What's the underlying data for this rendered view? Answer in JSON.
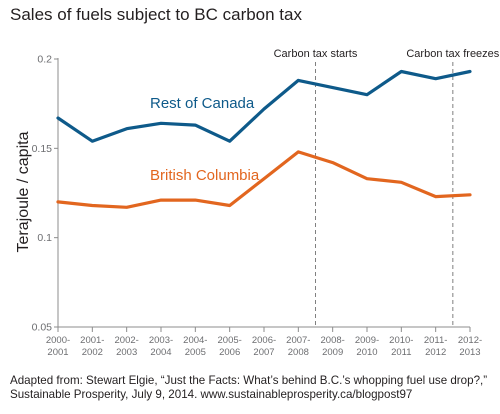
{
  "chart_data": {
    "type": "line",
    "title": "Sales of fuels subject to BC carbon tax",
    "ylabel": "Terajoule / capita",
    "xlabel": "",
    "ylim": [
      0.05,
      0.2
    ],
    "yticks": [
      "0.2",
      "0.15",
      "0.1",
      "0.05"
    ],
    "categories": [
      [
        "2000-",
        "2001"
      ],
      [
        "2001-",
        "2002"
      ],
      [
        "2002-",
        "2003"
      ],
      [
        "2003-",
        "2004"
      ],
      [
        "2004-",
        "2005"
      ],
      [
        "2005-",
        "2006"
      ],
      [
        "2006-",
        "2007"
      ],
      [
        "2007-",
        "2008"
      ],
      [
        "2008-",
        "2009"
      ],
      [
        "2009-",
        "2010"
      ],
      [
        "2010-",
        "2011"
      ],
      [
        "2011-",
        "2012"
      ],
      [
        "2012-",
        "2013"
      ]
    ],
    "series": [
      {
        "name": "Rest of Canada",
        "color": "#0e5a8a",
        "values": [
          0.167,
          0.154,
          0.161,
          0.164,
          0.163,
          0.154,
          0.172,
          0.188,
          0.184,
          0.18,
          0.193,
          0.189,
          0.193
        ]
      },
      {
        "name": "British Columbia",
        "color": "#e2661f",
        "values": [
          0.12,
          0.118,
          0.117,
          0.121,
          0.121,
          0.118,
          0.133,
          0.148,
          0.142,
          0.133,
          0.131,
          0.123,
          0.124
        ]
      }
    ],
    "annotations": [
      {
        "label": "Carbon tax starts",
        "x_position": 7.5
      },
      {
        "label": "Carbon tax freezes",
        "x_position": 11.5
      }
    ],
    "grid": false
  },
  "source": {
    "line1": "Adapted from: Stewart Elgie, “Just the Facts: What’s behind B.C.’s whopping fuel use drop?,”",
    "line2": "Sustainable Prosperity, July 9, 2014. www.sustainableprosperity.ca/blogpost97"
  }
}
